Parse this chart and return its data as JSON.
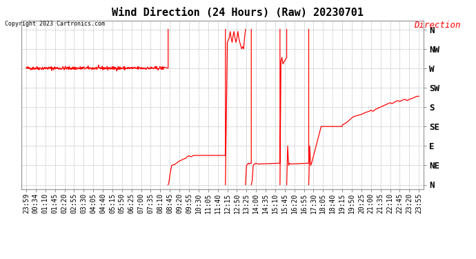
{
  "title": "Wind Direction (24 Hours) (Raw) 20230701",
  "copyright": "Copyright 2023 Cartronics.com",
  "legend_label": "Direction",
  "legend_color": "red",
  "line_color": "red",
  "background_color": "#ffffff",
  "grid_color": "#bbbbbb",
  "ytick_labels": [
    "N",
    "NW",
    "W",
    "SW",
    "S",
    "SE",
    "E",
    "NE",
    "N"
  ],
  "ytick_values": [
    360,
    315,
    270,
    225,
    180,
    135,
    90,
    45,
    0
  ],
  "ylim": [
    -10,
    380
  ],
  "title_fontsize": 11,
  "tick_fontsize": 7,
  "xtick_labels": [
    "23:59",
    "00:34",
    "01:10",
    "01:45",
    "02:20",
    "02:55",
    "03:30",
    "04:05",
    "04:40",
    "05:15",
    "05:50",
    "06:25",
    "07:00",
    "07:35",
    "08:10",
    "08:45",
    "09:20",
    "09:55",
    "10:30",
    "11:05",
    "11:40",
    "12:15",
    "12:50",
    "13:25",
    "14:00",
    "14:35",
    "15:10",
    "15:45",
    "16:20",
    "16:55",
    "17:30",
    "18:05",
    "18:40",
    "19:15",
    "19:50",
    "20:25",
    "21:00",
    "21:35",
    "22:10",
    "22:45",
    "23:20",
    "23:55"
  ]
}
